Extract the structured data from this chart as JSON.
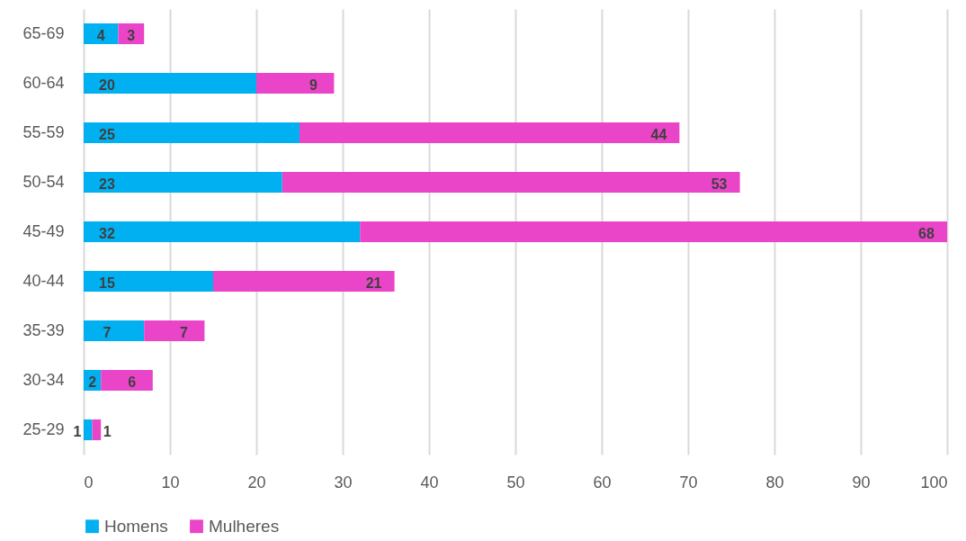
{
  "chart_data": {
    "type": "bar",
    "orientation": "horizontal",
    "stacked": true,
    "categories": [
      "65-69",
      "60-64",
      "55-59",
      "50-54",
      "45-49",
      "40-44",
      "35-39",
      "30-34",
      "25-29"
    ],
    "series": [
      {
        "name": "Homens",
        "color": "#00b0f0",
        "values": [
          4,
          20,
          25,
          23,
          32,
          15,
          7,
          2,
          1
        ]
      },
      {
        "name": "Mulheres",
        "color": "#ea45c8",
        "values": [
          3,
          9,
          44,
          53,
          68,
          21,
          7,
          6,
          1
        ]
      }
    ],
    "xlim": [
      0,
      100
    ],
    "xticks": [
      0,
      10,
      20,
      30,
      40,
      50,
      60,
      70,
      80,
      90,
      100
    ],
    "grid": "x",
    "legend": "bottom",
    "data_labels": true
  }
}
